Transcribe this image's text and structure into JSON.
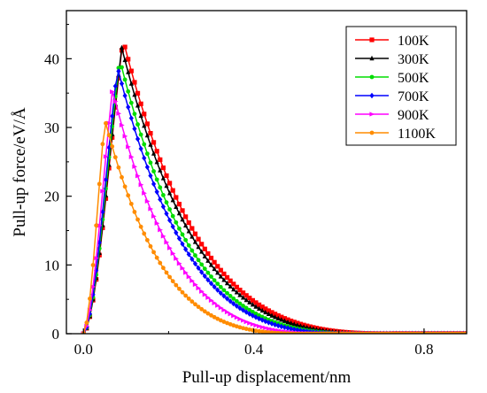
{
  "chart_data": {
    "type": "line",
    "xlabel": "Pull-up displacement/nm",
    "ylabel": "Pull-up force/eV/Å",
    "xlim": [
      -0.04,
      0.9
    ],
    "ylim": [
      0,
      47
    ],
    "xticks": [
      0.0,
      0.4,
      0.8
    ],
    "xtick_labels": [
      "0.0",
      "0.4",
      "0.8"
    ],
    "yticks": [
      0,
      10,
      20,
      30,
      40
    ],
    "ytick_labels": [
      "0",
      "10",
      "20",
      "30",
      "40"
    ],
    "grid": false,
    "legend_position": "top-right",
    "series": [
      {
        "name": "100K",
        "color": "#ff0000",
        "marker": "square",
        "peak_x": 0.093,
        "peak_y": 42.8,
        "tail_end_x": 0.72
      },
      {
        "name": "300K",
        "color": "#000000",
        "marker": "triangle",
        "peak_x": 0.09,
        "peak_y": 41.6,
        "tail_end_x": 0.7
      },
      {
        "name": "500K",
        "color": "#00dd00",
        "marker": "circle",
        "peak_x": 0.085,
        "peak_y": 40.0,
        "tail_end_x": 0.66
      },
      {
        "name": "700K",
        "color": "#0000ff",
        "marker": "diamond",
        "peak_x": 0.08,
        "peak_y": 38.8,
        "tail_end_x": 0.64
      },
      {
        "name": "900K",
        "color": "#ff00ff",
        "marker": "triangle-right",
        "peak_x": 0.068,
        "peak_y": 35.5,
        "tail_end_x": 0.58
      },
      {
        "name": "1100K",
        "color": "#ff8c00",
        "marker": "circle",
        "peak_x": 0.05,
        "peak_y": 31.2,
        "tail_end_x": 0.52
      }
    ]
  }
}
